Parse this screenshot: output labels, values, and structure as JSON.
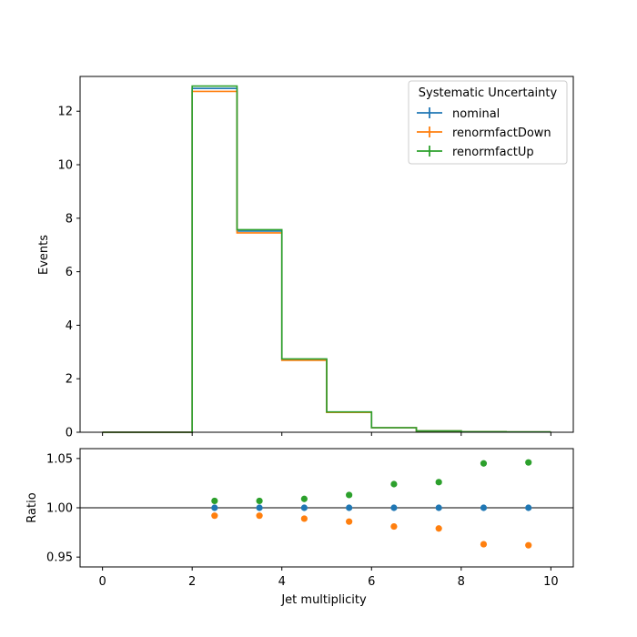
{
  "chart_data": [
    {
      "type": "line",
      "drawstyle": "step",
      "xlabel": "",
      "ylabel": "Events",
      "xlim": [
        -0.5,
        10.5
      ],
      "ylim": [
        0,
        13.3
      ],
      "bin_edges": [
        0,
        1,
        2,
        3,
        4,
        5,
        6,
        7,
        8,
        9,
        10
      ],
      "yticks": [
        0,
        2,
        4,
        6,
        8,
        10,
        12
      ],
      "xticks": [
        0,
        2,
        4,
        6,
        8,
        10
      ],
      "legend": {
        "title": "Systematic Uncertainty",
        "placement": "upper right"
      },
      "series": [
        {
          "name": "nominal",
          "color": "#1f77b4",
          "values": [
            0,
            0,
            12.85,
            7.52,
            2.72,
            0.75,
            0.17,
            0.05,
            0.02,
            0.01
          ]
        },
        {
          "name": "renormfactDown",
          "color": "#ff7f0e",
          "values": [
            0,
            0,
            12.74,
            7.45,
            2.69,
            0.74,
            0.17,
            0.05,
            0.02,
            0.01
          ]
        },
        {
          "name": "renormfactUp",
          "color": "#2ca02c",
          "values": [
            0,
            0,
            12.94,
            7.57,
            2.74,
            0.76,
            0.17,
            0.05,
            0.02,
            0.01
          ]
        }
      ]
    },
    {
      "type": "scatter",
      "xlabel": "Jet multiplicity",
      "ylabel": "Ratio",
      "xlim": [
        -0.5,
        10.5
      ],
      "ylim": [
        0.94,
        1.06
      ],
      "xticks": [
        0,
        2,
        4,
        6,
        8,
        10
      ],
      "yticks": [
        0.95,
        1.0,
        1.05
      ],
      "reference_line": 1.0,
      "x": [
        2.5,
        3.5,
        4.5,
        5.5,
        6.5,
        7.5,
        8.5,
        9.5
      ],
      "series": [
        {
          "name": "nominal",
          "color": "#1f77b4",
          "values": [
            1.0,
            1.0,
            1.0,
            1.0,
            1.0,
            1.0,
            1.0,
            1.0
          ]
        },
        {
          "name": "renormfactDown",
          "color": "#ff7f0e",
          "values": [
            0.992,
            0.992,
            0.989,
            0.986,
            0.981,
            0.979,
            0.963,
            0.962
          ]
        },
        {
          "name": "renormfactUp",
          "color": "#2ca02c",
          "values": [
            1.007,
            1.007,
            1.009,
            1.013,
            1.024,
            1.026,
            1.045,
            1.046
          ]
        }
      ]
    }
  ]
}
